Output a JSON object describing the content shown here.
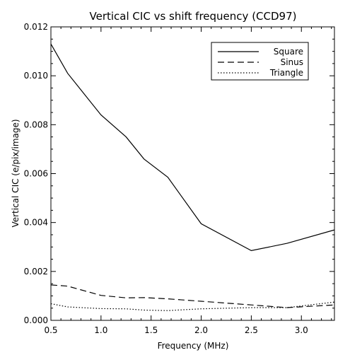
{
  "chart_data": {
    "type": "line",
    "title": "Vertical CIC vs shift frequency (CCD97)",
    "xlabel": "Frequency (MHz)",
    "ylabel": "Vertical CIC (e/pix/image)",
    "xlim": [
      0.5,
      3.33
    ],
    "ylim": [
      0.0,
      0.012
    ],
    "xticks": [
      0.5,
      1.0,
      1.5,
      2.0,
      2.5,
      3.0
    ],
    "xtick_labels": [
      "0.5",
      "1.0",
      "1.5",
      "2.0",
      "2.5",
      "3.0"
    ],
    "yticks": [
      0.0,
      0.002,
      0.004,
      0.006,
      0.008,
      0.01,
      0.012
    ],
    "ytick_labels": [
      "0.000",
      "0.002",
      "0.004",
      "0.006",
      "0.008",
      "0.010",
      "0.012"
    ],
    "grid": false,
    "legend_position": "top-right",
    "series": [
      {
        "name": "Square",
        "style": "solid",
        "x": [
          0.5,
          0.667,
          1.0,
          1.25,
          1.429,
          1.667,
          2.0,
          2.5,
          2.857,
          3.333
        ],
        "y": [
          0.0113,
          0.0101,
          0.0084,
          0.0075,
          0.0066,
          0.00585,
          0.00395,
          0.00285,
          0.00315,
          0.0037
        ]
      },
      {
        "name": "Sinus",
        "style": "dashed",
        "x": [
          0.5,
          0.667,
          1.0,
          1.25,
          1.429,
          1.667,
          2.0,
          2.5,
          2.857,
          3.333
        ],
        "y": [
          0.00145,
          0.0014,
          0.00102,
          0.00092,
          0.00093,
          0.00088,
          0.00078,
          0.00063,
          0.00052,
          0.00063
        ]
      },
      {
        "name": "Triangle",
        "style": "dotted",
        "x": [
          0.5,
          0.667,
          1.0,
          1.25,
          1.429,
          1.667,
          2.0,
          2.5,
          2.857,
          3.333
        ],
        "y": [
          0.00068,
          0.00055,
          0.00048,
          0.00047,
          0.00042,
          0.0004,
          0.00047,
          0.00052,
          0.00052,
          0.00075
        ]
      }
    ]
  }
}
